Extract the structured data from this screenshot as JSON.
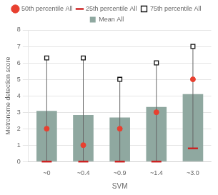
{
  "chart_data": {
    "type": "bar",
    "xlabel": "SVM",
    "ylabel": "Metronome detection score",
    "categories": [
      "~0",
      "~0.4",
      "~0.9",
      "~1.4",
      "~3.0"
    ],
    "series": [
      {
        "name": "Mean All",
        "type": "bar",
        "color": "#8fa8a0",
        "values": [
          3.08,
          2.83,
          2.68,
          3.32,
          4.1
        ]
      },
      {
        "name": "50th percentile All",
        "type": "scatter",
        "marker": "circle",
        "color": "#e84030",
        "values": [
          2.0,
          1.0,
          2.0,
          3.0,
          5.0
        ]
      },
      {
        "name": "25th percentile All",
        "type": "scatter",
        "marker": "line",
        "color": "#cc2222",
        "values": [
          0.0,
          0.0,
          0.0,
          0.0,
          0.8
        ]
      },
      {
        "name": "75th percentile All",
        "type": "scatter",
        "marker": "square",
        "color": "#111111",
        "values": [
          6.3,
          6.3,
          5.0,
          6.0,
          7.0
        ]
      }
    ],
    "ylim": [
      0,
      8
    ],
    "yticks": [
      0,
      1,
      2,
      3,
      4,
      5,
      6,
      7,
      8
    ],
    "grid": true,
    "legend": "top"
  }
}
